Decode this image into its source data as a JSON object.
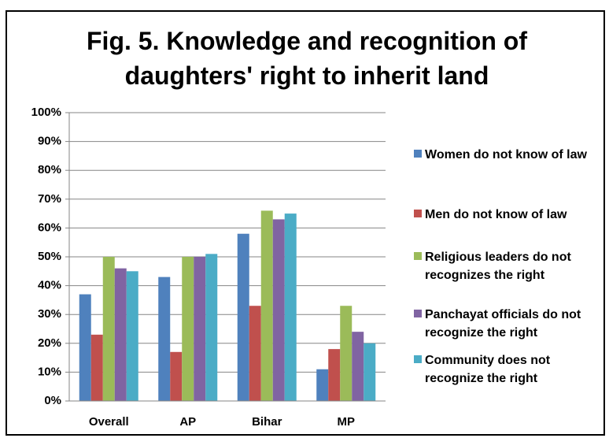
{
  "chart_data": {
    "type": "bar",
    "title": "Fig. 5. Knowledge and recognition of daughters' right to inherit land",
    "categories": [
      "Overall",
      "AP",
      "Bihar",
      "MP"
    ],
    "series": [
      {
        "name": "Women do not know of law",
        "color": "#4f81bd",
        "values": [
          37,
          43,
          58,
          11
        ]
      },
      {
        "name": "Men do not know of law",
        "color": "#c0504d",
        "values": [
          23,
          17,
          33,
          18
        ]
      },
      {
        "name": "Religious leaders do not recognizes the right",
        "color": "#9bbb59",
        "values": [
          50,
          50,
          66,
          33
        ]
      },
      {
        "name": "Panchayat officials do not recognize the right",
        "color": "#8064a2",
        "values": [
          46,
          50,
          63,
          24
        ]
      },
      {
        "name": "Community does not recognize the right",
        "color": "#4bacc6",
        "values": [
          45,
          51,
          65,
          20
        ]
      }
    ],
    "ylim": [
      0,
      100
    ],
    "yticks": [
      {
        "value": 0,
        "label": "0%"
      },
      {
        "value": 10,
        "label": "10%"
      },
      {
        "value": 20,
        "label": "20%"
      },
      {
        "value": 30,
        "label": "30%"
      },
      {
        "value": 40,
        "label": "40%"
      },
      {
        "value": 50,
        "label": "50%"
      },
      {
        "value": 60,
        "label": "60%"
      },
      {
        "value": 70,
        "label": "70%"
      },
      {
        "value": 80,
        "label": "80%"
      },
      {
        "value": 90,
        "label": "90%"
      },
      {
        "value": 100,
        "label": "100%"
      }
    ],
    "grid": true,
    "legend": "right"
  }
}
